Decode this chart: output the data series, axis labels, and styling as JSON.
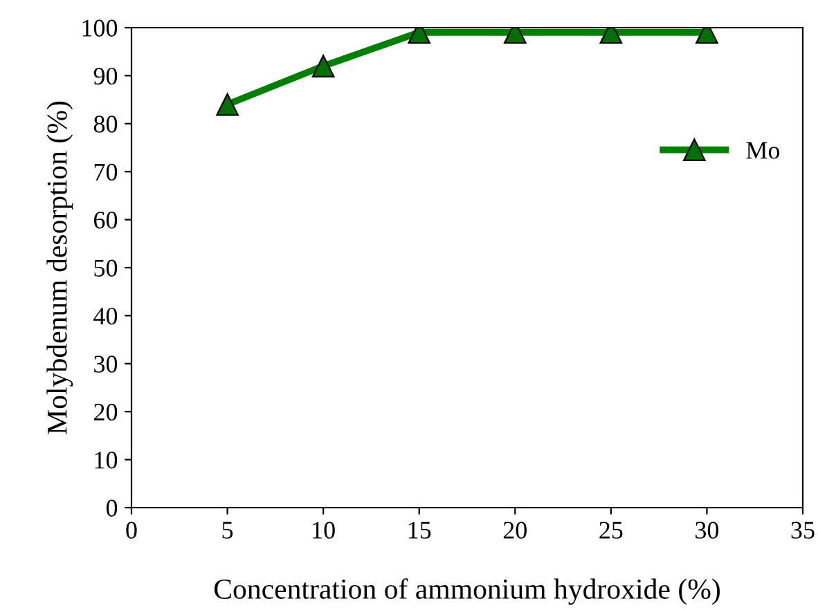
{
  "chart_data": {
    "type": "line",
    "xlabel": "Concentration of ammonium hydroxide (%)",
    "ylabel": "Molybdenum desorption (%)",
    "x": [
      5,
      10,
      15,
      20,
      25,
      30
    ],
    "series": [
      {
        "name": "Mo",
        "color": "#008000",
        "values": [
          84,
          92,
          99,
          99,
          99,
          99
        ]
      }
    ],
    "xlim": [
      0,
      35
    ],
    "xticks": [
      0,
      5,
      10,
      15,
      20,
      25,
      30,
      35
    ],
    "ylim": [
      0,
      100
    ],
    "yticks": [
      0,
      10,
      20,
      30,
      40,
      50,
      60,
      70,
      80,
      90,
      100
    ],
    "grid": false,
    "legend": "right",
    "marker": "triangle",
    "line_style": "solid"
  }
}
